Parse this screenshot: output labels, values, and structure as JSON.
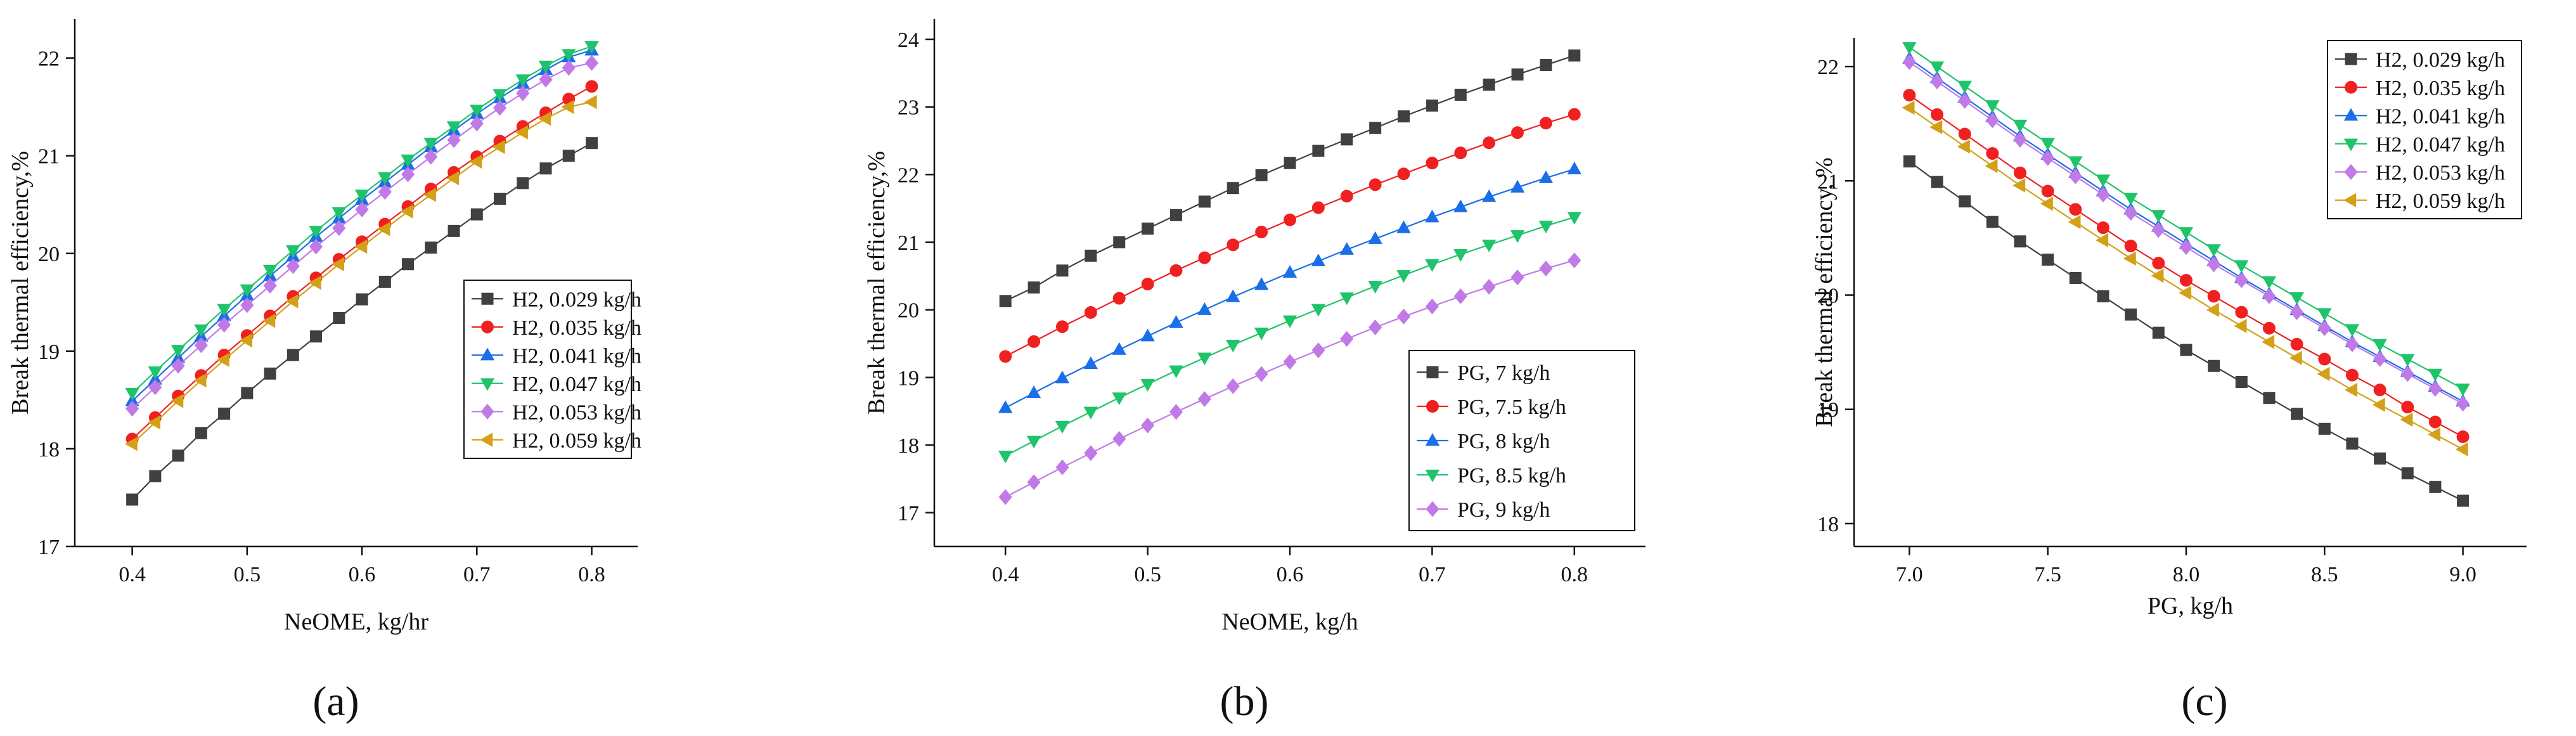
{
  "figure": {
    "panel_labels": [
      "(a)",
      "(b)",
      "(c)"
    ]
  },
  "chart_data": [
    {
      "type": "line",
      "panel": "(a)",
      "xlabel": "NeOME, kg/hr",
      "ylabel": "Break thermal efficiency,%",
      "xlim": [
        0.35,
        0.84
      ],
      "ylim": [
        17,
        22.4
      ],
      "xticks": [
        "0.4",
        "0.5",
        "0.6",
        "0.7",
        "0.8"
      ],
      "xtick_values": [
        0.4,
        0.5,
        0.6,
        0.7,
        0.8
      ],
      "yticks": [
        "17",
        "18",
        "19",
        "20",
        "21",
        "22"
      ],
      "ytick_values": [
        17,
        18,
        19,
        20,
        21,
        22
      ],
      "legend_position": "center-right",
      "x": [
        0.4,
        0.42,
        0.44,
        0.46,
        0.48,
        0.5,
        0.52,
        0.54,
        0.56,
        0.58,
        0.6,
        0.62,
        0.64,
        0.66,
        0.68,
        0.7,
        0.72,
        0.74,
        0.76,
        0.78,
        0.8
      ],
      "series": [
        {
          "name": "H2, 0.029 kg/h",
          "color": "#404040",
          "marker": "square",
          "values": [
            17.48,
            17.72,
            17.93,
            18.16,
            18.36,
            18.57,
            18.77,
            18.96,
            19.15,
            19.34,
            19.53,
            19.71,
            19.89,
            20.06,
            20.23,
            20.4,
            20.56,
            20.72,
            20.87,
            21.0,
            21.13
          ]
        },
        {
          "name": "H2, 0.035 kg/h",
          "color": "#f02020",
          "marker": "circle",
          "values": [
            18.1,
            18.32,
            18.54,
            18.75,
            18.96,
            19.16,
            19.36,
            19.56,
            19.75,
            19.94,
            20.12,
            20.3,
            20.48,
            20.66,
            20.83,
            20.99,
            21.15,
            21.3,
            21.44,
            21.58,
            21.71
          ]
        },
        {
          "name": "H2, 0.041 kg/h",
          "color": "#1a6fe8",
          "marker": "triangle-up",
          "values": [
            18.49,
            18.71,
            18.93,
            19.15,
            19.36,
            19.57,
            19.77,
            19.97,
            20.17,
            20.36,
            20.55,
            20.73,
            20.91,
            21.09,
            21.26,
            21.43,
            21.59,
            21.74,
            21.88,
            22.01,
            22.08
          ]
        },
        {
          "name": "H2, 0.047 kg/h",
          "color": "#1fc46a",
          "marker": "triangle-down",
          "values": [
            18.57,
            18.79,
            19.01,
            19.22,
            19.43,
            19.63,
            19.83,
            20.03,
            20.23,
            20.42,
            20.6,
            20.78,
            20.96,
            21.13,
            21.3,
            21.47,
            21.63,
            21.78,
            21.92,
            22.04,
            22.12
          ]
        },
        {
          "name": "H2, 0.053 kg/h",
          "color": "#c07ae8",
          "marker": "diamond",
          "values": [
            18.41,
            18.63,
            18.85,
            19.06,
            19.27,
            19.47,
            19.67,
            19.87,
            20.07,
            20.26,
            20.45,
            20.63,
            20.81,
            20.99,
            21.16,
            21.33,
            21.49,
            21.64,
            21.78,
            21.9,
            21.95
          ]
        },
        {
          "name": "H2, 0.059 kg/h",
          "color": "#d4a017",
          "marker": "triangle-left",
          "values": [
            18.05,
            18.27,
            18.49,
            18.7,
            18.91,
            19.11,
            19.31,
            19.51,
            19.7,
            19.89,
            20.07,
            20.25,
            20.43,
            20.6,
            20.77,
            20.94,
            21.09,
            21.24,
            21.38,
            21.5,
            21.55
          ]
        }
      ]
    },
    {
      "type": "line",
      "panel": "(b)",
      "xlabel": "NeOME, kg/h",
      "ylabel": "Break thermal efficiency,%",
      "xlim": [
        0.35,
        0.85
      ],
      "ylim": [
        16.5,
        24.3
      ],
      "xticks": [
        "0.4",
        "0.5",
        "0.6",
        "0.7",
        "0.8"
      ],
      "xtick_values": [
        0.4,
        0.5,
        0.6,
        0.7,
        0.8
      ],
      "yticks": [
        "17",
        "18",
        "19",
        "20",
        "21",
        "22",
        "23",
        "24"
      ],
      "ytick_values": [
        17,
        18,
        19,
        20,
        21,
        22,
        23,
        24
      ],
      "legend_position": "bottom-right",
      "x": [
        0.4,
        0.42,
        0.44,
        0.46,
        0.48,
        0.5,
        0.52,
        0.54,
        0.56,
        0.58,
        0.6,
        0.62,
        0.64,
        0.66,
        0.68,
        0.7,
        0.72,
        0.74,
        0.76,
        0.78,
        0.8
      ],
      "series": [
        {
          "name": "PG, 7 kg/h",
          "color": "#404040",
          "marker": "square",
          "values": [
            20.13,
            20.33,
            20.58,
            20.8,
            21.0,
            21.2,
            21.4,
            21.6,
            21.8,
            21.99,
            22.17,
            22.35,
            22.52,
            22.69,
            22.86,
            23.02,
            23.18,
            23.33,
            23.48,
            23.62,
            23.76
          ]
        },
        {
          "name": "PG, 7.5 kg/h",
          "color": "#f02020",
          "marker": "circle",
          "values": [
            19.31,
            19.53,
            19.75,
            19.96,
            20.17,
            20.38,
            20.58,
            20.77,
            20.96,
            21.15,
            21.33,
            21.51,
            21.68,
            21.85,
            22.01,
            22.17,
            22.32,
            22.47,
            22.62,
            22.76,
            22.89
          ]
        },
        {
          "name": "PG, 8 kg/h",
          "color": "#1a6fe8",
          "marker": "triangle-up",
          "values": [
            18.55,
            18.77,
            18.99,
            19.2,
            19.41,
            19.61,
            19.81,
            20.0,
            20.19,
            20.37,
            20.55,
            20.72,
            20.89,
            21.05,
            21.21,
            21.37,
            21.52,
            21.67,
            21.81,
            21.95,
            22.08
          ]
        },
        {
          "name": "PG, 8.5 kg/h",
          "color": "#1fc46a",
          "marker": "triangle-down",
          "values": [
            17.84,
            18.06,
            18.28,
            18.49,
            18.7,
            18.9,
            19.1,
            19.29,
            19.48,
            19.66,
            19.84,
            20.01,
            20.18,
            20.35,
            20.51,
            20.67,
            20.82,
            20.96,
            21.1,
            21.24,
            21.37
          ]
        },
        {
          "name": "PG, 9 kg/h",
          "color": "#c07ae8",
          "marker": "diamond",
          "values": [
            17.23,
            17.45,
            17.67,
            17.88,
            18.09,
            18.29,
            18.49,
            18.68,
            18.87,
            19.05,
            19.23,
            19.4,
            19.57,
            19.74,
            19.9,
            20.05,
            20.2,
            20.34,
            20.48,
            20.61,
            20.73
          ]
        }
      ]
    },
    {
      "type": "line",
      "panel": "(c)",
      "xlabel": "PG, kg/h",
      "ylabel": "Break thermal efficiency, %",
      "xlim": [
        6.8,
        9.23
      ],
      "ylim": [
        17.8,
        22.25
      ],
      "xticks": [
        "7.0",
        "7.5",
        "8.0",
        "8.5",
        "9.0"
      ],
      "xtick_values": [
        7.0,
        7.5,
        8.0,
        8.5,
        9.0
      ],
      "yticks": [
        "18",
        "19",
        "20",
        "21",
        "22"
      ],
      "ytick_values": [
        18,
        19,
        20,
        21,
        22
      ],
      "legend_position": "top-right",
      "x": [
        7.0,
        7.1,
        7.2,
        7.3,
        7.4,
        7.5,
        7.6,
        7.7,
        7.8,
        7.9,
        8.0,
        8.1,
        8.2,
        8.3,
        8.4,
        8.5,
        8.6,
        8.7,
        8.8,
        8.9,
        9.0
      ],
      "series": [
        {
          "name": "H2, 0.029 kg/h",
          "color": "#404040",
          "marker": "square",
          "values": [
            21.17,
            20.99,
            20.82,
            20.64,
            20.47,
            20.31,
            20.15,
            19.99,
            19.83,
            19.67,
            19.52,
            19.38,
            19.24,
            19.1,
            18.96,
            18.83,
            18.7,
            18.57,
            18.44,
            18.32,
            18.2
          ]
        },
        {
          "name": "H2, 0.035 kg/h",
          "color": "#f02020",
          "marker": "circle",
          "values": [
            21.75,
            21.58,
            21.41,
            21.24,
            21.07,
            20.91,
            20.75,
            20.59,
            20.43,
            20.28,
            20.13,
            19.99,
            19.85,
            19.71,
            19.57,
            19.44,
            19.3,
            19.17,
            19.02,
            18.89,
            18.76
          ]
        },
        {
          "name": "H2, 0.041 kg/h",
          "color": "#1a6fe8",
          "marker": "triangle-up",
          "values": [
            22.07,
            21.9,
            21.73,
            21.56,
            21.39,
            21.23,
            21.07,
            20.91,
            20.75,
            20.6,
            20.45,
            20.3,
            20.15,
            20.01,
            19.87,
            19.73,
            19.59,
            19.46,
            19.33,
            19.2,
            19.07
          ]
        },
        {
          "name": "H2, 0.047 kg/h",
          "color": "#1fc46a",
          "marker": "triangle-down",
          "values": [
            22.17,
            22.0,
            21.83,
            21.66,
            21.49,
            21.33,
            21.17,
            21.01,
            20.85,
            20.7,
            20.55,
            20.4,
            20.26,
            20.12,
            19.98,
            19.84,
            19.7,
            19.57,
            19.44,
            19.31,
            19.18
          ]
        },
        {
          "name": "H2, 0.053 kg/h",
          "color": "#c07ae8",
          "marker": "diamond",
          "values": [
            22.04,
            21.87,
            21.7,
            21.53,
            21.36,
            21.2,
            21.04,
            20.88,
            20.72,
            20.57,
            20.42,
            20.27,
            20.13,
            19.99,
            19.85,
            19.71,
            19.57,
            19.44,
            19.31,
            19.18,
            19.05
          ]
        },
        {
          "name": "H2, 0.059 kg/h",
          "color": "#d4a017",
          "marker": "triangle-left",
          "values": [
            21.64,
            21.47,
            21.3,
            21.13,
            20.96,
            20.8,
            20.64,
            20.48,
            20.32,
            20.17,
            20.02,
            19.87,
            19.73,
            19.59,
            19.45,
            19.31,
            19.17,
            19.04,
            18.91,
            18.78,
            18.65
          ]
        }
      ]
    }
  ]
}
